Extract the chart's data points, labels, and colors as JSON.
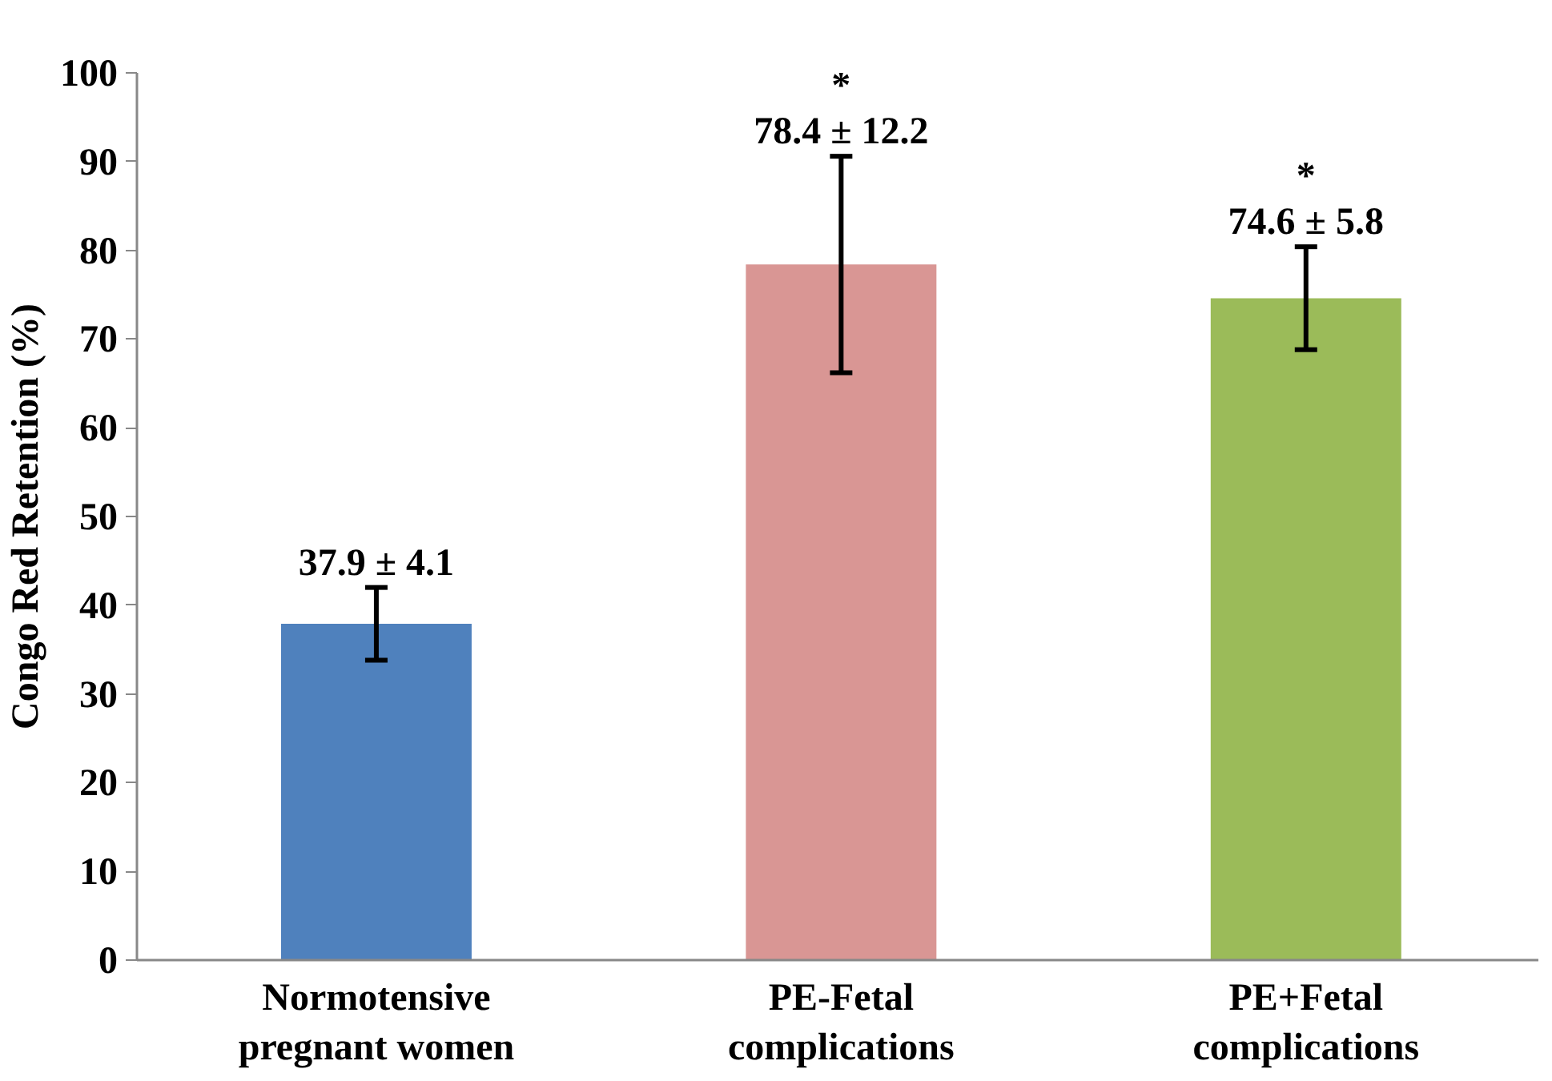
{
  "chart_data": {
    "type": "bar",
    "ylabel": "Congo Red Retention (%)",
    "categories": [
      "Normotensive\npregnant women",
      "PE-Fetal\ncomplications",
      "PE+Fetal\ncomplications"
    ],
    "values": [
      37.9,
      78.4,
      74.6
    ],
    "colors": [
      "#4f81bd",
      "#d99694",
      "#9bbb59"
    ],
    "errors": [
      4.1,
      12.2,
      5.8
    ],
    "value_labels": [
      "37.9 ± 4.1",
      "*\n78.4 ± 12.2",
      "*\n74.6 ± 5.8"
    ],
    "ylim": [
      0,
      100
    ],
    "yticks": [
      0,
      10,
      20,
      30,
      40,
      50,
      60,
      70,
      80,
      90,
      100
    ],
    "grid": false
  }
}
